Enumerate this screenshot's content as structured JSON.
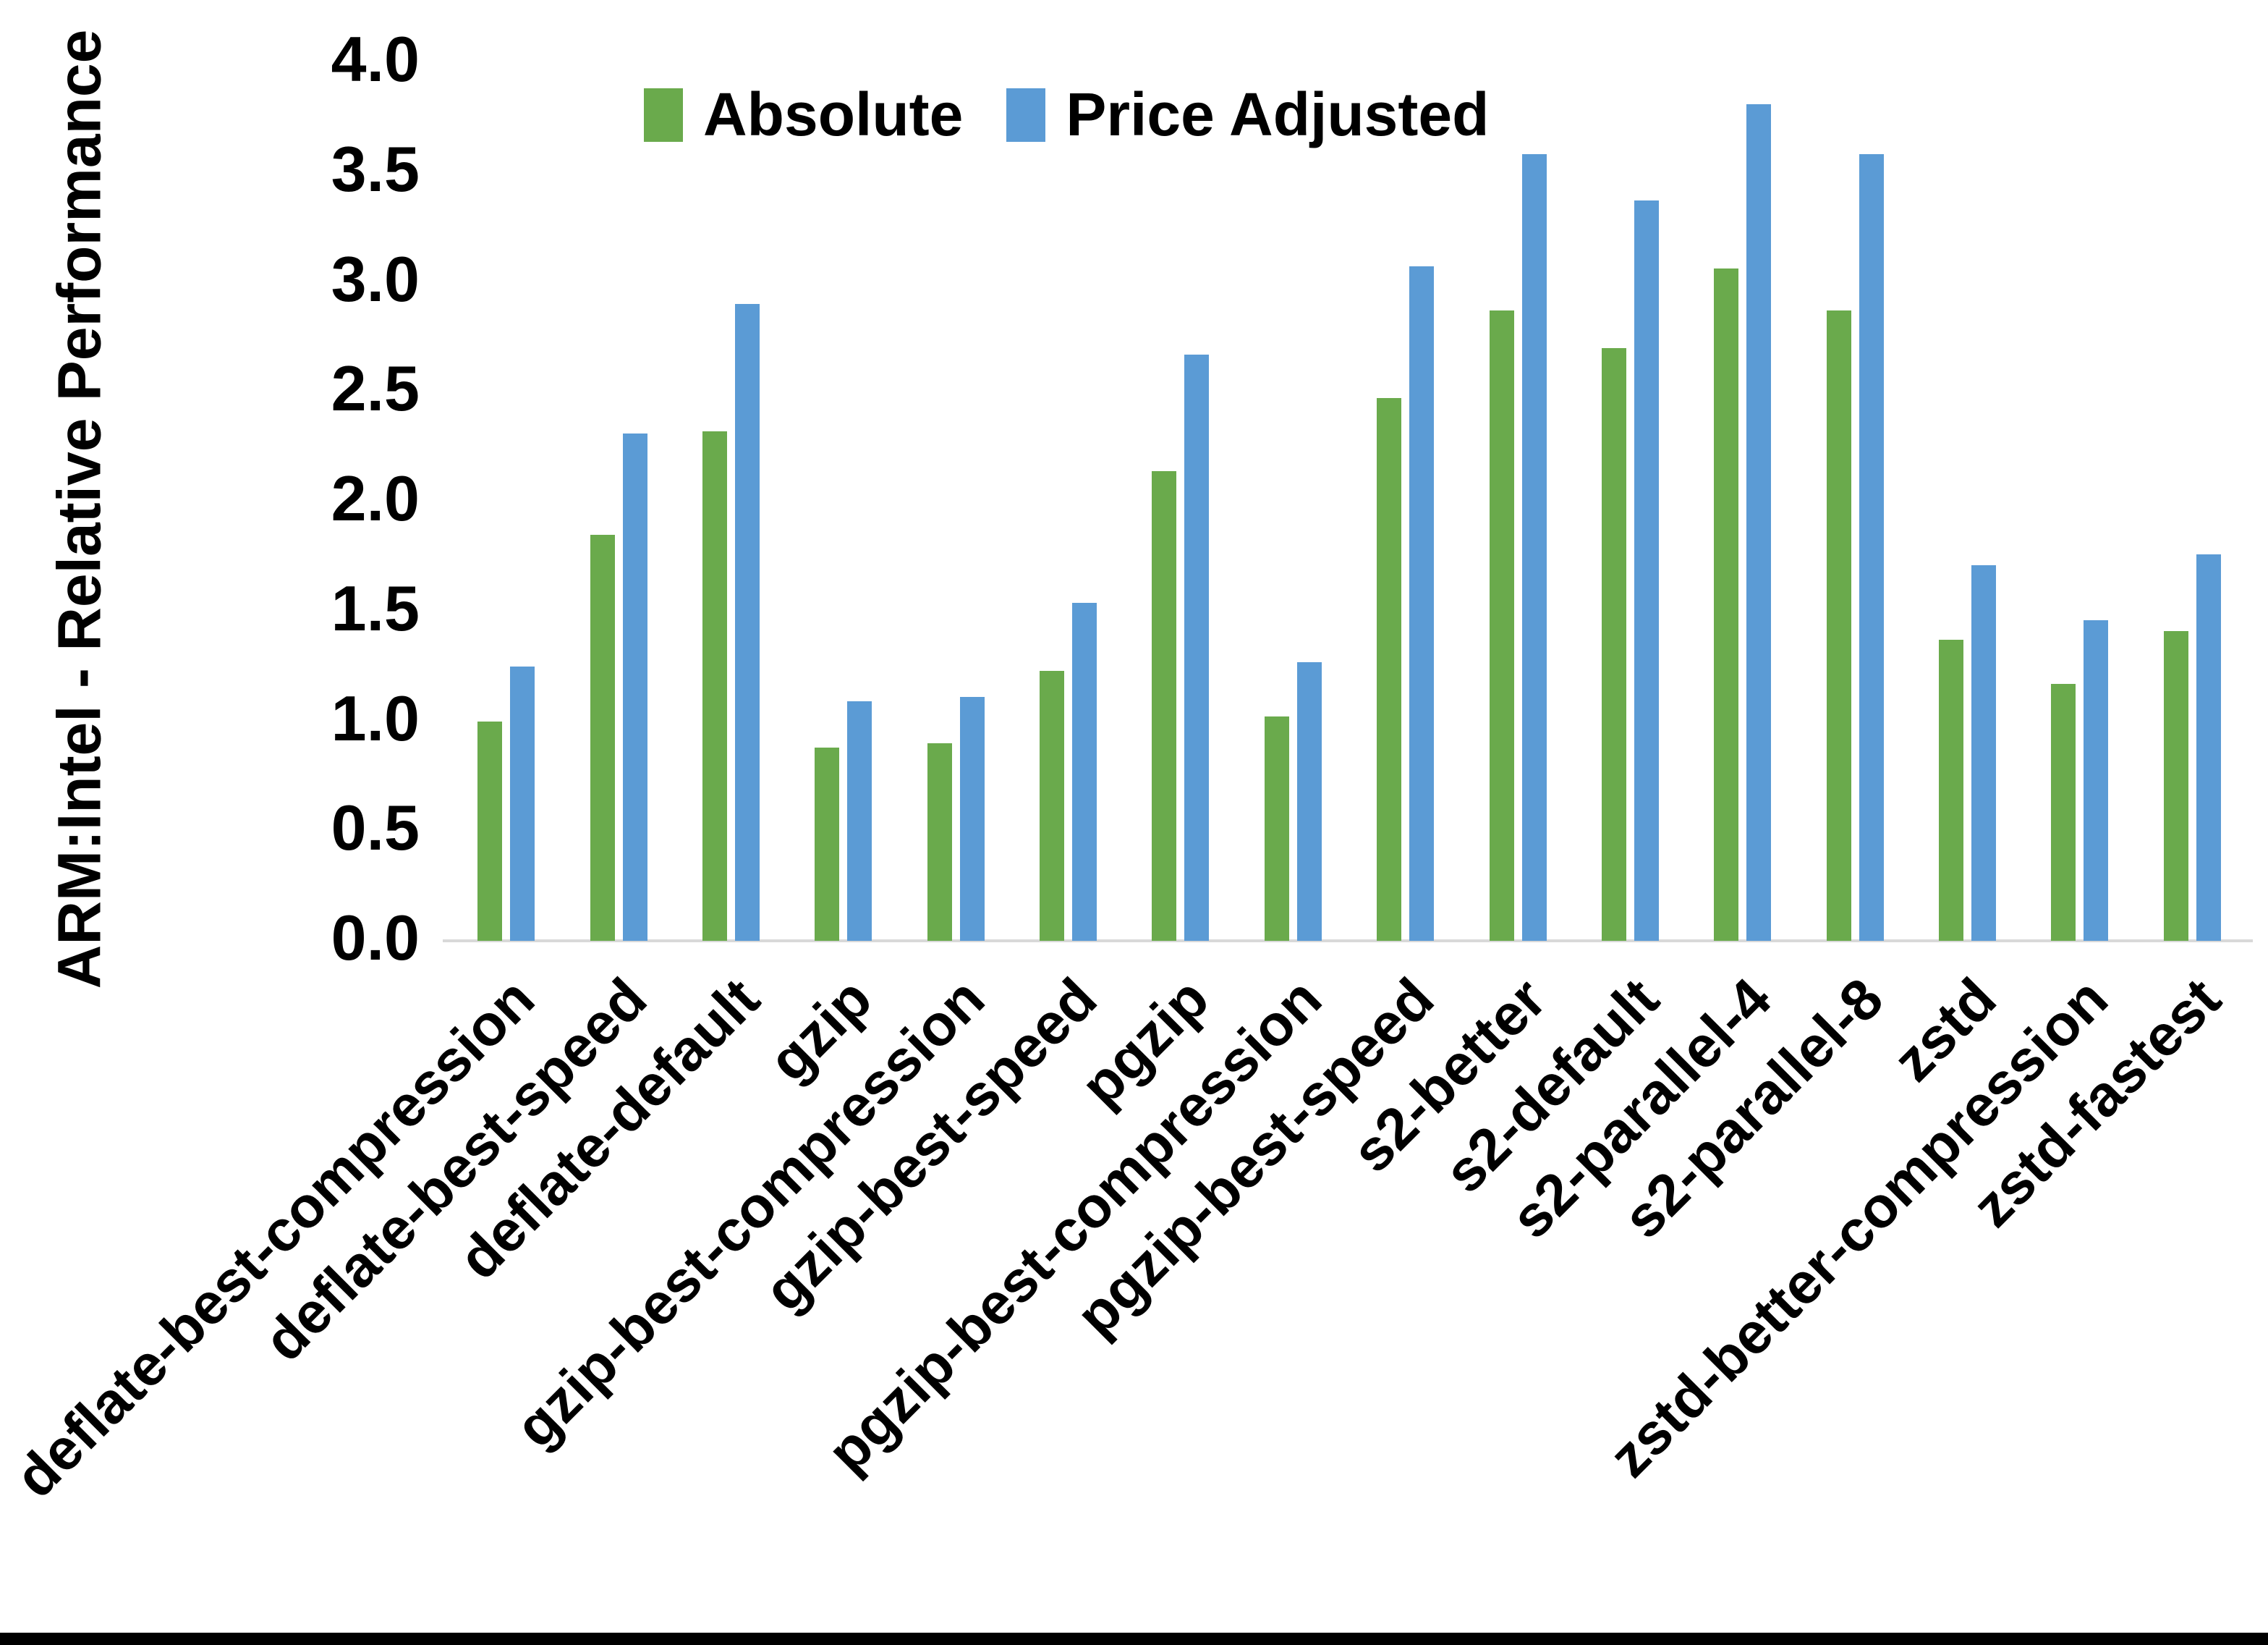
{
  "chart_data": {
    "type": "bar",
    "title": "",
    "ylabel": "ARM:Intel - Relative Performance",
    "xlabel": "",
    "ylim": [
      0.0,
      4.0
    ],
    "ytick_step": 0.5,
    "yticks": [
      "0.0",
      "0.5",
      "1.0",
      "1.5",
      "2.0",
      "2.5",
      "3.0",
      "3.5",
      "4.0"
    ],
    "grid": "off",
    "legend_position": "top",
    "axis_line_color": "#d9d9d9",
    "text_color": "#000000",
    "background_color": "#ffffff",
    "categories": [
      "deflate-best-compression",
      "deflate-best-speed",
      "deflate-default",
      "gzip",
      "gzip-best-compression",
      "gzip-best-speed",
      "pgzip",
      "pgzip-best-compression",
      "pgzip-best-speed",
      "s2-better",
      "s2-default",
      "s2-parallel-4",
      "s2-parallel-8",
      "zstd",
      "zstd-better-compression",
      "zstd-fastest"
    ],
    "series": [
      {
        "name": "Absolute",
        "color": "#6aaa4c",
        "values": [
          1.0,
          1.85,
          2.32,
          0.88,
          0.9,
          1.23,
          2.14,
          1.02,
          2.47,
          2.87,
          2.7,
          3.06,
          2.87,
          1.37,
          1.17,
          1.41
        ]
      },
      {
        "name": "Price Adjusted",
        "color": "#5b9bd5",
        "values": [
          1.25,
          2.31,
          2.9,
          1.09,
          1.11,
          1.54,
          2.67,
          1.27,
          3.07,
          3.58,
          3.37,
          3.81,
          3.58,
          1.71,
          1.46,
          1.76
        ]
      }
    ]
  }
}
